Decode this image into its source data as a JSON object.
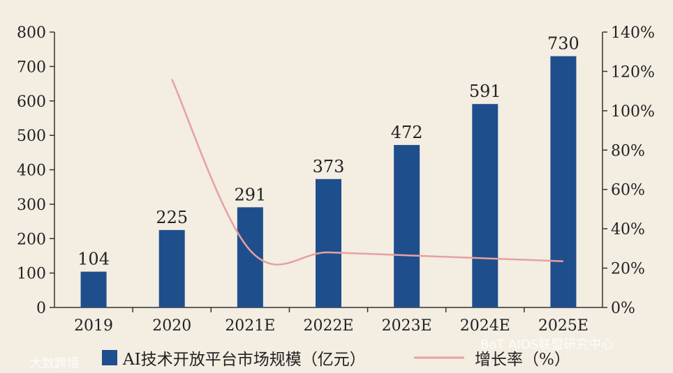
{
  "chart_data": {
    "type": "bar",
    "categories": [
      "2019",
      "2020",
      "2021E",
      "2022E",
      "2023E",
      "2024E",
      "2025E"
    ],
    "series": [
      {
        "name": "AI技术开放平台市场规模（亿元）",
        "type": "bar",
        "axis": "left",
        "values": [
          104,
          225,
          291,
          373,
          472,
          591,
          730
        ]
      },
      {
        "name": "增长率（%）",
        "type": "line",
        "axis": "right",
        "values": [
          null,
          116,
          29,
          28,
          26.5,
          25,
          23.5
        ]
      }
    ],
    "y_left": {
      "min": 0,
      "max": 800,
      "ticks": [
        "0",
        "100",
        "200",
        "300",
        "400",
        "500",
        "600",
        "700",
        "800"
      ]
    },
    "y_right": {
      "min": 0,
      "max": 140,
      "ticks": [
        "0%",
        "20%",
        "40%",
        "60%",
        "80%",
        "100%",
        "120%",
        "140%"
      ]
    },
    "data_labels": [
      "104",
      "225",
      "291",
      "373",
      "472",
      "591",
      "730"
    ],
    "legend_placement": "bottom",
    "grid": false,
    "colors": {
      "bar": "#1f4e8c",
      "line": "#e8a0a0",
      "axis": "#333333",
      "background": "#f3ede2"
    },
    "watermarks": {
      "left": "大数跨境",
      "right": "BoT AIOS联盟研究中心"
    }
  }
}
